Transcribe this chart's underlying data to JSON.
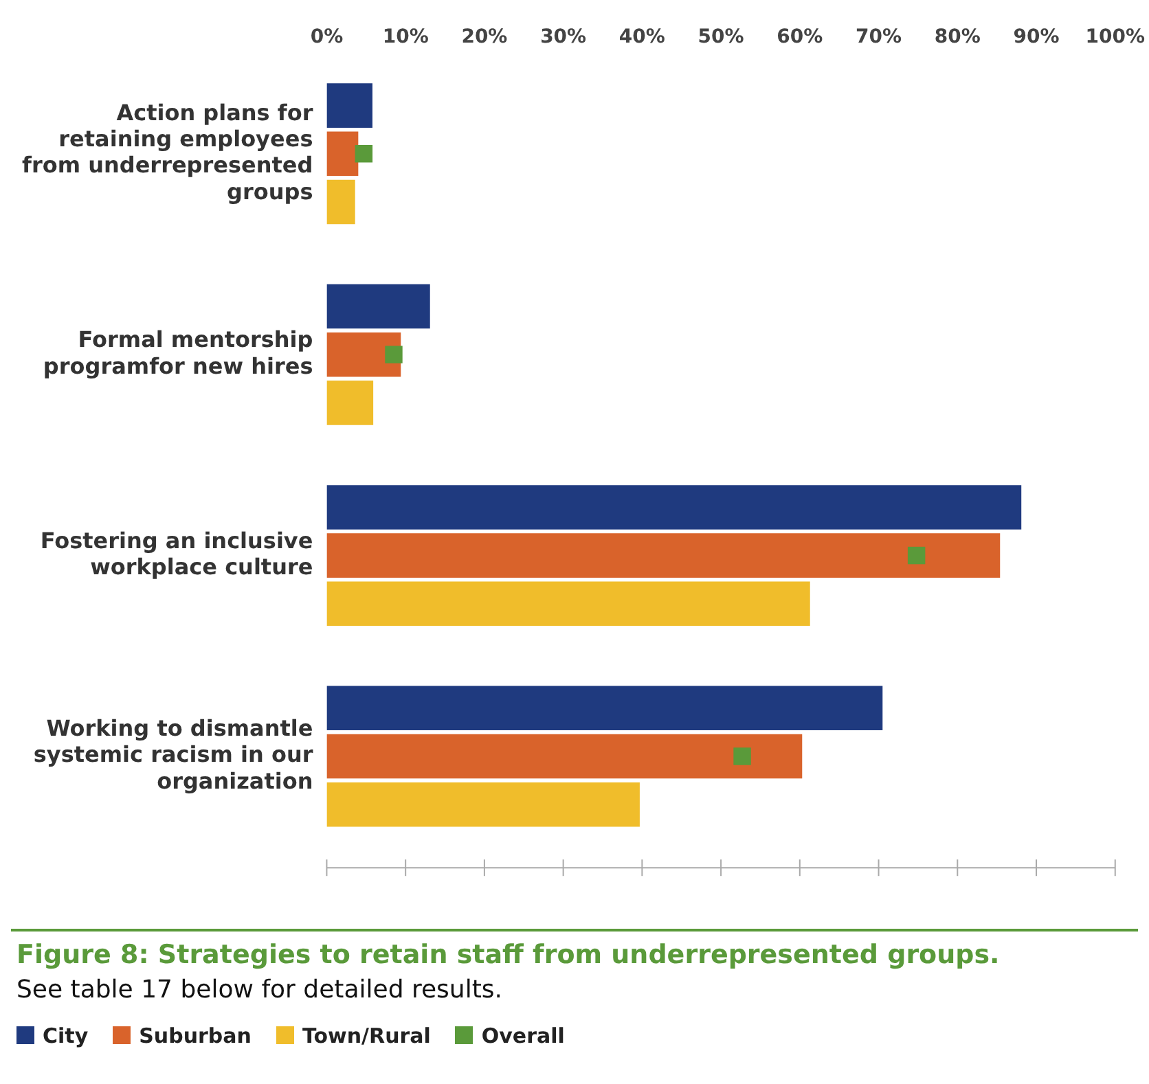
{
  "chart_data": {
    "type": "bar",
    "orientation": "horizontal",
    "title": "Figure 8: Strategies to retain staff from underrepresented groups.",
    "annotations": [
      "See table 17 below for detailed results."
    ],
    "categories": [
      "Action plans for retaining employees from underrepresented groups",
      "Formal mentorship programfor new hires",
      "Fostering an inclusive workplace culture",
      "Working to dismantle systemic racism in our organization"
    ],
    "series": [
      {
        "name": "City",
        "color": "#1f3a7f",
        "values": [
          5.8,
          13.1,
          88.1,
          70.5
        ]
      },
      {
        "name": "Suburban",
        "color": "#d9632b",
        "values": [
          4.0,
          9.4,
          85.4,
          60.3
        ]
      },
      {
        "name": "Town/Rural",
        "color": "#f0bd2b",
        "values": [
          3.6,
          5.9,
          61.3,
          39.7
        ]
      },
      {
        "name": "Overall",
        "type": "scatter",
        "color": "#5a9a3a",
        "values": [
          4.7,
          8.5,
          74.8,
          52.7
        ]
      }
    ],
    "xlim": [
      0,
      100
    ],
    "xticks": [
      {
        "value": 0,
        "label": "0%"
      },
      {
        "value": 10,
        "label": "10%"
      },
      {
        "value": 20,
        "label": "20%"
      },
      {
        "value": 30,
        "label": "30%"
      },
      {
        "value": 40,
        "label": "40%"
      },
      {
        "value": 50,
        "label": "50%"
      },
      {
        "value": 60,
        "label": "60%"
      },
      {
        "value": 70,
        "label": "70%"
      },
      {
        "value": 80,
        "label": "80%"
      },
      {
        "value": 90,
        "label": "90%"
      },
      {
        "value": 100,
        "label": "100%"
      }
    ],
    "grid": false,
    "marker": "square",
    "legend": "bottom left"
  }
}
